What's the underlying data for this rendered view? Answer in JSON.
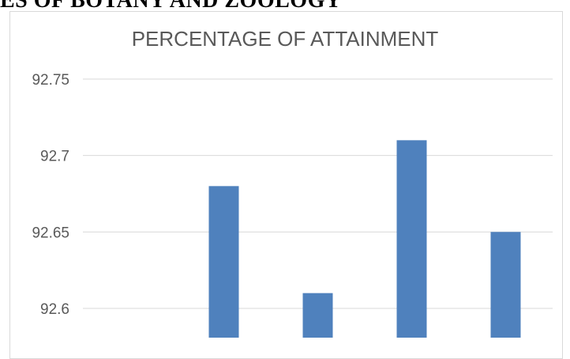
{
  "page": {
    "heading": "ES OF BOTANY AND ZOOLOGY"
  },
  "colors": {
    "bar": "#4f81bd",
    "grid": "#d9d9d9",
    "text": "#595959"
  },
  "chart_data": {
    "type": "bar",
    "title": "PERCENTAGE OF ATTAINMENT",
    "xlabel": "",
    "ylabel": "",
    "ylim": [
      92.58,
      92.77
    ],
    "yticks": [
      92.6,
      92.65,
      92.7,
      92.75
    ],
    "ytick_labels": [
      "92.6",
      "92.65",
      "92.7",
      "92.75"
    ],
    "categories": [
      "",
      "",
      "",
      "",
      ""
    ],
    "values": [
      null,
      92.68,
      92.61,
      92.71,
      92.65
    ],
    "grid": true,
    "legend": "none"
  }
}
